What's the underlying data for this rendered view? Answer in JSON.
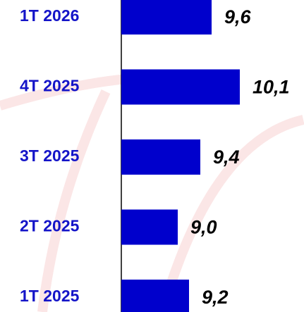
{
  "chart_data": {
    "type": "bar",
    "orientation": "horizontal",
    "categories": [
      "1T 2026",
      "4T 2025",
      "3T 2025",
      "2T 2025",
      "1T 2025"
    ],
    "values": [
      9.6,
      10.1,
      9.4,
      9.0,
      9.2
    ],
    "value_labels": [
      "9,6",
      "10,1",
      "9,4",
      "9,0",
      "9,2"
    ],
    "color": "#0000cc",
    "xlim": [
      8,
      10.5
    ]
  }
}
